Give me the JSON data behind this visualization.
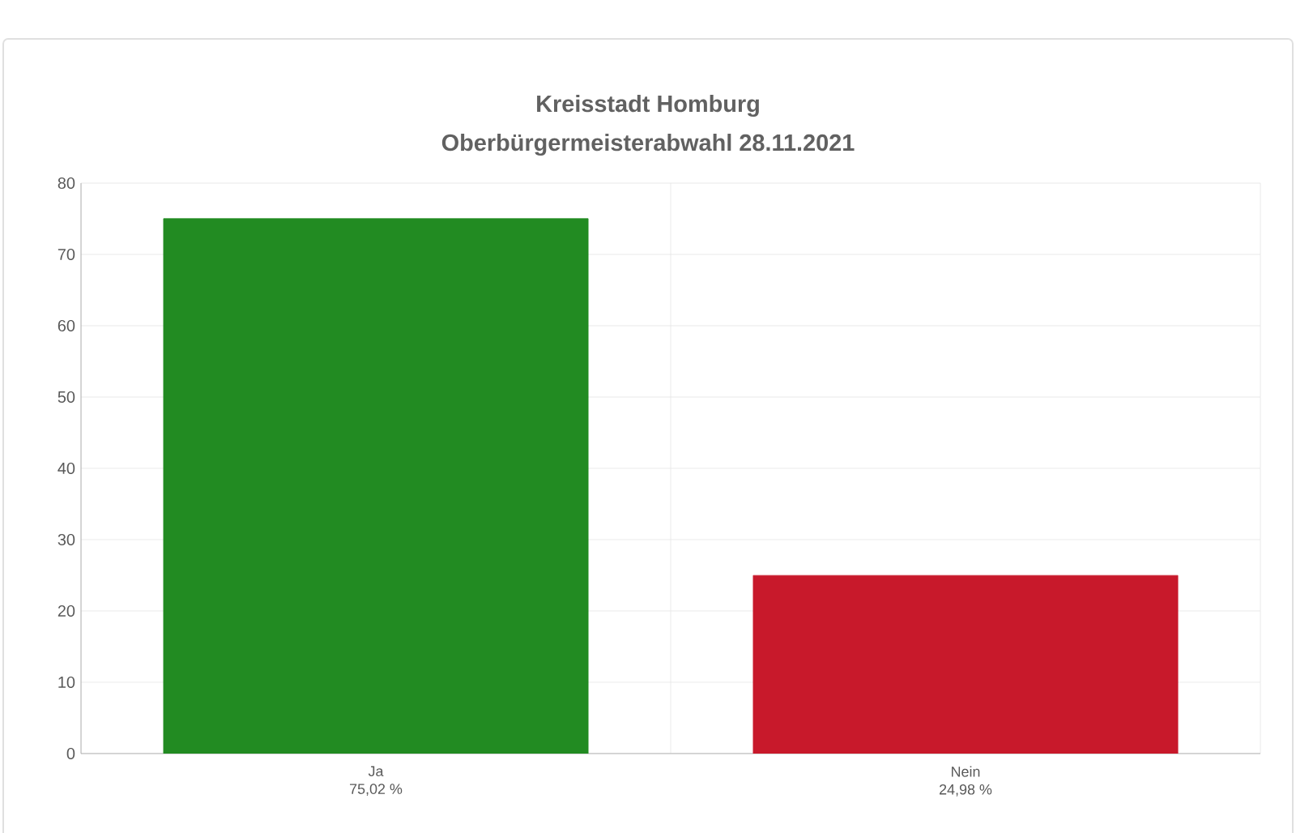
{
  "chart_data": {
    "type": "bar",
    "title": "Kreisstadt Homburg",
    "subtitle": "Oberbürgermeisterabwahl 28.11.2021",
    "categories": [
      "Ja",
      "Nein"
    ],
    "values": [
      75.02,
      24.98
    ],
    "value_labels": [
      "75,02 %",
      "24,98 %"
    ],
    "colors": [
      "#228b22",
      "#c8192b"
    ],
    "ylim": [
      0,
      80
    ],
    "yticks": [
      0,
      10,
      20,
      30,
      40,
      50,
      60,
      70,
      80
    ],
    "grid": true
  }
}
